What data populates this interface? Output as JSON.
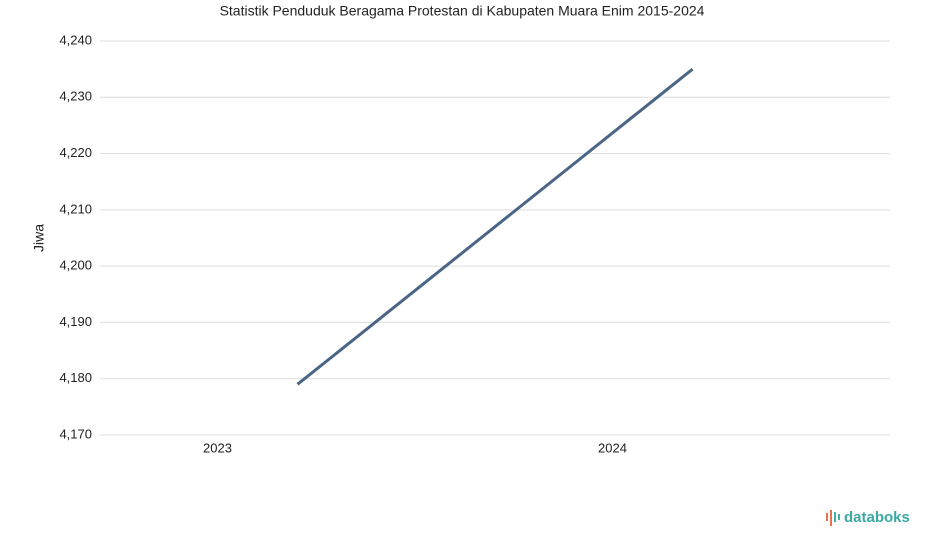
{
  "chart_data": {
    "type": "line",
    "title": "Statistik Penduduk Beragama Protestan di Kabupaten Muara Enim 2015-2024",
    "y_label": "Jiwa",
    "categories": [
      "2023",
      "2024"
    ],
    "series": [
      {
        "name": "Jiwa",
        "color": "#4b6587",
        "values": [
          4179,
          4235
        ]
      }
    ],
    "ylim": [
      4170,
      4240
    ],
    "yticks": [
      {
        "value": 4170,
        "label": "4,170"
      },
      {
        "value": 4180,
        "label": "4,180"
      },
      {
        "value": 4190,
        "label": "4,190"
      },
      {
        "value": 4200,
        "label": "4,200"
      },
      {
        "value": 4210,
        "label": "4,210"
      },
      {
        "value": 4220,
        "label": "4,220"
      },
      {
        "value": 4230,
        "label": "4,230"
      },
      {
        "value": 4240,
        "label": "4,240"
      }
    ],
    "grid": true,
    "watermark": "databoks"
  }
}
